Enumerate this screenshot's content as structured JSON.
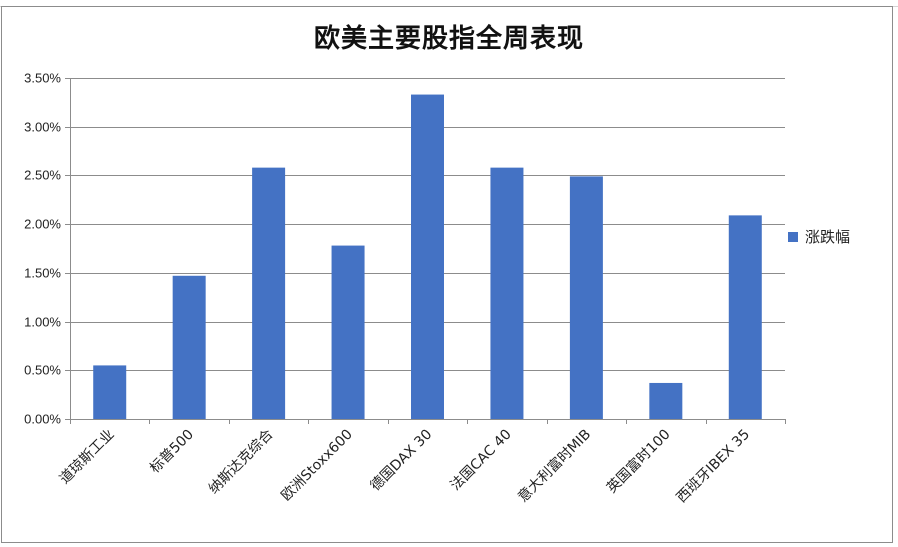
{
  "chart_data": {
    "type": "bar",
    "title": "欧美主要股指全周表现",
    "xlabel": "",
    "ylabel": "",
    "categories": [
      "道琼斯工业",
      "标普500",
      "纳斯达克综合",
      "欧洲Stoxx600",
      "德国DAX 30",
      "法国CAC 40",
      "意大利富时MIB",
      "英国富时100",
      "西班牙IBEX 35"
    ],
    "series": [
      {
        "name": "涨跌幅",
        "values": [
          0.0055,
          0.0147,
          0.0258,
          0.0178,
          0.0333,
          0.0258,
          0.0249,
          0.0037,
          0.0209
        ]
      }
    ],
    "ylim": [
      0,
      0.035
    ],
    "yticks": [
      0.0,
      0.005,
      0.01,
      0.015,
      0.02,
      0.025,
      0.03,
      0.035
    ],
    "ytick_labels": [
      "0.00%",
      "0.50%",
      "1.00%",
      "1.50%",
      "2.00%",
      "2.50%",
      "3.00%",
      "3.50%"
    ],
    "grid": true,
    "legend_position": "right",
    "colors": {
      "bar": "#4472C4",
      "grid": "#8c8c8c",
      "axis": "#8c8c8c"
    }
  }
}
